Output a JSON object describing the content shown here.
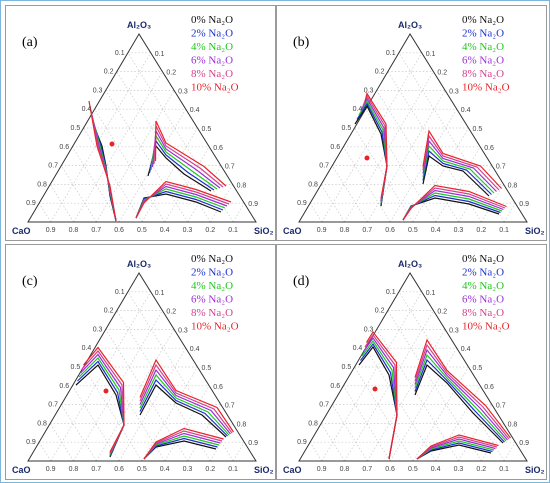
{
  "figure": {
    "panels": [
      {
        "label": "(a)",
        "dot_color": "#e8242a"
      },
      {
        "label": "(b)",
        "dot_color": "#e8242a"
      },
      {
        "label": "(c)",
        "dot_color": "#e8242a"
      },
      {
        "label": "(d)",
        "dot_color": "#e8242a"
      }
    ],
    "vertices": {
      "top": "Al₂O₃",
      "left": "CaO",
      "right": "SiO₂"
    },
    "ticks": [
      "0.1",
      "0.2",
      "0.3",
      "0.4",
      "0.5",
      "0.6",
      "0.7",
      "0.8",
      "0.9"
    ],
    "bottom_ticks": [
      "0.9",
      "0.8",
      "0.7",
      "0.6",
      "0.5",
      "0.4",
      "0.3",
      "0.2",
      "0.1"
    ],
    "legend": [
      {
        "label": "0% Na₂O",
        "color": "#111111"
      },
      {
        "label": "2% Na₂O",
        "color": "#1d2fd0"
      },
      {
        "label": "4% Na₂O",
        "color": "#1fc81f"
      },
      {
        "label": "6% Na₂O",
        "color": "#9b2fd6"
      },
      {
        "label": "8% Na₂O",
        "color": "#d4428e"
      },
      {
        "label": "10% Na₂O",
        "color": "#e8242a"
      }
    ]
  }
}
